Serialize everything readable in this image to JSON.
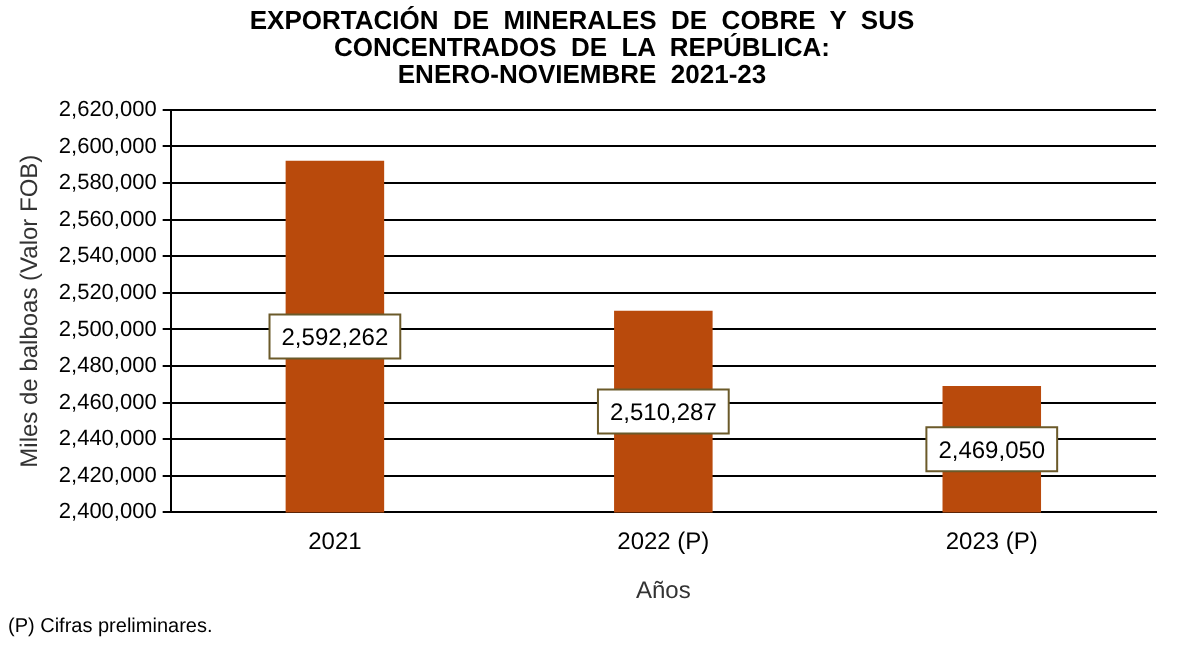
{
  "chart_data": {
    "type": "bar",
    "title": "EXPORTACIÓN  DE  MINERALES  DE  COBRE  Y  SUS\nCONCENTRADOS  DE  LA  REPÚBLICA:\nENERO-NOVIEMBRE  2021-23",
    "xlabel": "Años",
    "ylabel": "Miles de balboas (Valor FOB)",
    "categories": [
      "2021",
      "2022 (P)",
      "2023 (P)"
    ],
    "values": [
      2592262,
      2510287,
      2469050
    ],
    "value_labels": [
      "2,592,262",
      "2,510,287",
      "2,469,050"
    ],
    "color": "#b94a0c",
    "ylim": [
      2400000,
      2620000
    ],
    "yticks": [
      {
        "value": 2400000,
        "label": "2,400,000"
      },
      {
        "value": 2420000,
        "label": "2,420,000"
      },
      {
        "value": 2440000,
        "label": "2,440,000"
      },
      {
        "value": 2460000,
        "label": "2,460,000"
      },
      {
        "value": 2480000,
        "label": "2,480,000"
      },
      {
        "value": 2500000,
        "label": "2,500,000"
      },
      {
        "value": 2520000,
        "label": "2,520,000"
      },
      {
        "value": 2540000,
        "label": "2,540,000"
      },
      {
        "value": 2560000,
        "label": "2,560,000"
      },
      {
        "value": 2580000,
        "label": "2,580,000"
      },
      {
        "value": 2600000,
        "label": "2,600,000"
      },
      {
        "value": 2620000,
        "label": "2,620,000"
      }
    ],
    "grid": "y",
    "annotations": [
      "(P) Cifras preliminares."
    ]
  }
}
